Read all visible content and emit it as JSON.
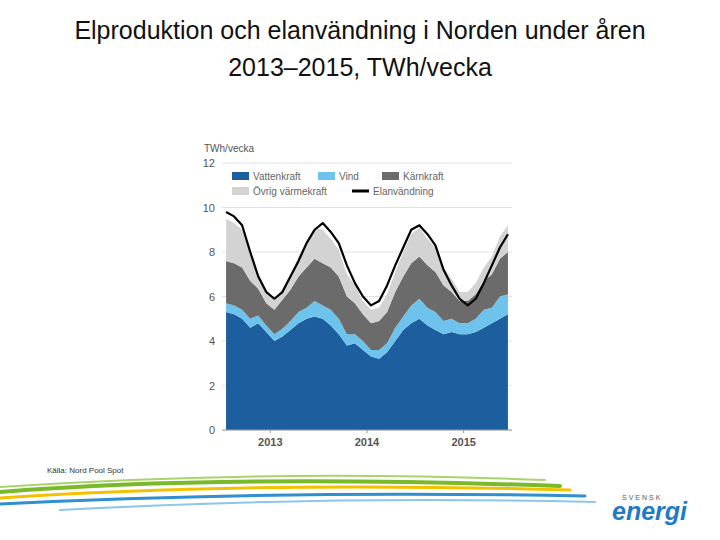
{
  "chart_data": {
    "type": "area",
    "title": "Elproduktion och elanvändning i Norden under åren 2013–2015, TWh/vecka",
    "y_label": "TWh/vecka",
    "stacked": true,
    "legend": "top",
    "grid": true,
    "x": [
      2013.042,
      2013.125,
      2013.208,
      2013.292,
      2013.375,
      2013.458,
      2013.542,
      2013.625,
      2013.708,
      2013.792,
      2013.875,
      2013.958,
      2014.042,
      2014.125,
      2014.208,
      2014.292,
      2014.375,
      2014.458,
      2014.542,
      2014.625,
      2014.708,
      2014.792,
      2014.875,
      2014.958,
      2015.042,
      2015.125,
      2015.208,
      2015.292,
      2015.375,
      2015.458,
      2015.542,
      2015.625,
      2015.708,
      2015.792,
      2015.875,
      2015.958
    ],
    "xlim": [
      2013,
      2016
    ],
    "xticks": [
      {
        "value": 2013.5,
        "label": "2013"
      },
      {
        "value": 2014.5,
        "label": "2014"
      },
      {
        "value": 2015.5,
        "label": "2015"
      }
    ],
    "ylim": [
      0,
      12
    ],
    "yticks": [
      0,
      2,
      4,
      6,
      8,
      10,
      12
    ],
    "series": [
      {
        "name": "Vattenkraft",
        "color": "#1d5f9e",
        "type": "area",
        "values": [
          5.3,
          5.2,
          5.0,
          4.6,
          4.8,
          4.4,
          4.0,
          4.2,
          4.5,
          4.8,
          5.0,
          5.1,
          5.0,
          4.7,
          4.3,
          3.8,
          3.9,
          3.6,
          3.3,
          3.2,
          3.5,
          4.0,
          4.5,
          4.8,
          5.0,
          4.7,
          4.5,
          4.3,
          4.4,
          4.3,
          4.3,
          4.4,
          4.6,
          4.8,
          5.0,
          5.2
        ]
      },
      {
        "name": "Vind",
        "color": "#6ec3ec",
        "type": "area",
        "values": [
          0.4,
          0.4,
          0.4,
          0.4,
          0.35,
          0.3,
          0.3,
          0.35,
          0.4,
          0.5,
          0.5,
          0.7,
          0.6,
          0.7,
          0.7,
          0.5,
          0.4,
          0.4,
          0.3,
          0.4,
          0.4,
          0.6,
          0.6,
          0.8,
          0.9,
          0.8,
          0.8,
          0.6,
          0.6,
          0.5,
          0.5,
          0.6,
          0.8,
          0.7,
          1.0,
          0.9
        ]
      },
      {
        "name": "Kärnkraft",
        "color": "#6b6b6b",
        "type": "area",
        "values": [
          1.9,
          1.9,
          1.9,
          1.7,
          1.2,
          1.0,
          1.1,
          1.3,
          1.4,
          1.6,
          1.8,
          1.9,
          1.9,
          1.9,
          1.9,
          1.7,
          1.4,
          1.2,
          1.2,
          1.3,
          1.4,
          1.6,
          1.8,
          1.9,
          1.9,
          1.9,
          1.8,
          1.6,
          1.2,
          1.0,
          1.0,
          1.1,
          1.3,
          1.5,
          1.7,
          1.9
        ]
      },
      {
        "name": "Övrig värmekraft",
        "color": "#d3d3d3",
        "type": "area",
        "values": [
          1.9,
          1.8,
          1.7,
          1.3,
          0.7,
          0.6,
          0.5,
          0.5,
          0.7,
          0.9,
          1.2,
          1.4,
          1.5,
          1.3,
          1.2,
          1.0,
          0.8,
          0.6,
          0.6,
          0.6,
          0.8,
          0.9,
          1.1,
          1.3,
          1.3,
          1.2,
          1.1,
          0.8,
          0.6,
          0.4,
          0.4,
          0.5,
          0.6,
          0.8,
          1.0,
          1.2
        ]
      },
      {
        "name": "Elanvändning",
        "color": "#000000",
        "type": "line",
        "values": [
          9.8,
          9.6,
          9.2,
          8.0,
          6.9,
          6.2,
          5.9,
          6.2,
          6.9,
          7.6,
          8.4,
          9.0,
          9.3,
          8.9,
          8.4,
          7.4,
          6.6,
          6.0,
          5.6,
          5.8,
          6.5,
          7.4,
          8.2,
          9.0,
          9.2,
          8.8,
          8.3,
          7.2,
          6.5,
          5.9,
          5.6,
          5.9,
          6.6,
          7.4,
          8.2,
          8.8
        ]
      }
    ]
  },
  "source": "Källa: Nord Pool Spot",
  "logo": {
    "line1": "SVENSK",
    "line2": "energi"
  }
}
